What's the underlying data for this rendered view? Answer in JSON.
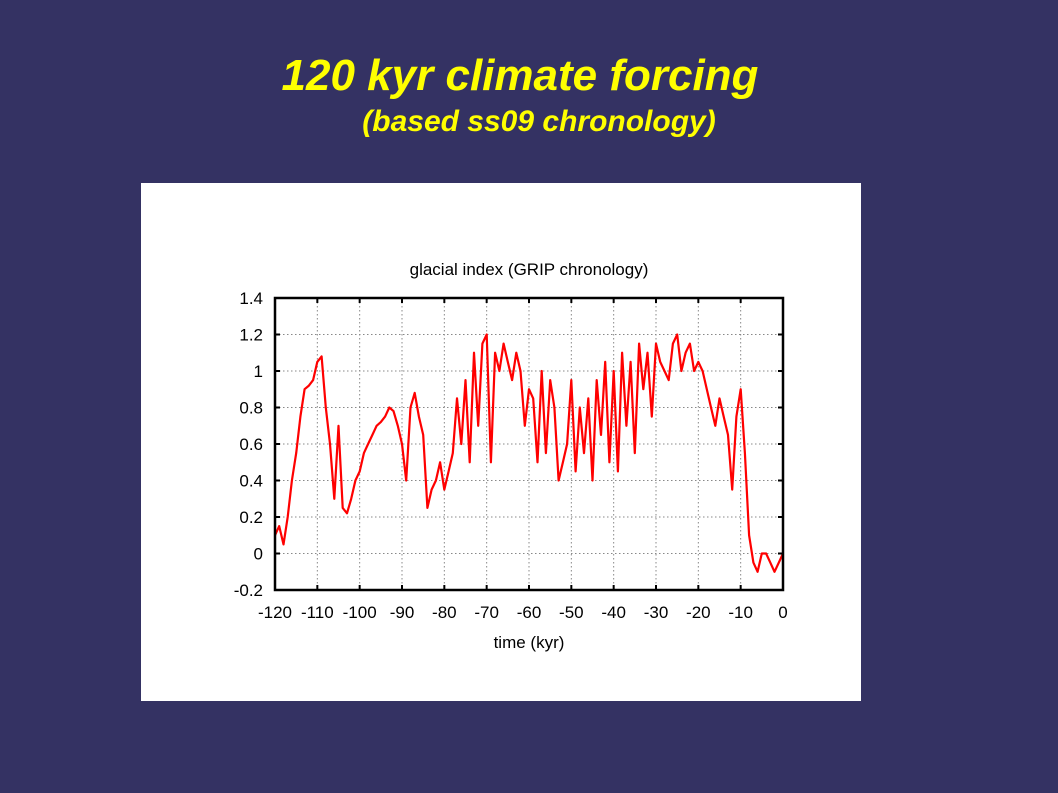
{
  "slide": {
    "title": "120 kyr climate forcing",
    "subtitle": "(based ss09 chronology)"
  },
  "colors": {
    "background": "#343263",
    "title": "#ffff00",
    "series": "#ff0000"
  },
  "chart_data": {
    "type": "line",
    "title": "glacial index (GRIP chronology)",
    "xlabel": "time (kyr)",
    "ylabel": "",
    "xlim": [
      -120,
      0
    ],
    "ylim": [
      -0.2,
      1.4
    ],
    "grid": true,
    "x_ticks": [
      -120,
      -110,
      -100,
      -90,
      -80,
      -70,
      -60,
      -50,
      -40,
      -30,
      -20,
      -10,
      0
    ],
    "x_tick_labels": [
      "-120",
      "-110",
      "-100",
      "-90",
      "-80",
      "-70",
      "-60",
      "-50",
      "-40",
      "-30",
      "-20",
      "-10",
      "0"
    ],
    "y_ticks": [
      -0.2,
      0,
      0.2,
      0.4,
      0.6,
      0.8,
      1,
      1.2,
      1.4
    ],
    "y_tick_labels": [
      "-0.2",
      "0",
      "0.2",
      "0.4",
      "0.6",
      "0.8",
      "1",
      "1.2",
      "1.4"
    ],
    "series": [
      {
        "color": "#ff0000",
        "x": [
          -120,
          -119,
          -118,
          -117,
          -116,
          -115,
          -114,
          -113,
          -112,
          -111,
          -110,
          -109,
          -108,
          -107,
          -106,
          -105,
          -104,
          -103,
          -102,
          -101,
          -100,
          -99,
          -98,
          -97,
          -96,
          -95,
          -94,
          -93,
          -92,
          -91,
          -90,
          -89,
          -88,
          -87,
          -86,
          -85,
          -84,
          -83,
          -82,
          -81,
          -80,
          -79,
          -78,
          -77,
          -76,
          -75,
          -74,
          -73,
          -72,
          -71,
          -70,
          -69,
          -68,
          -67,
          -66,
          -65,
          -64,
          -63,
          -62,
          -61,
          -60,
          -59,
          -58,
          -57,
          -56,
          -55,
          -54,
          -53,
          -52,
          -51,
          -50,
          -49,
          -48,
          -47,
          -46,
          -45,
          -44,
          -43,
          -42,
          -41,
          -40,
          -39,
          -38,
          -37,
          -36,
          -35,
          -34,
          -33,
          -32,
          -31,
          -30,
          -29,
          -28,
          -27,
          -26,
          -25,
          -24,
          -23,
          -22,
          -21,
          -20,
          -19,
          -18,
          -17,
          -16,
          -15,
          -14,
          -13,
          -12,
          -11,
          -10,
          -9,
          -8,
          -7,
          -6,
          -5,
          -4,
          -3,
          -2,
          -1,
          0
        ],
        "y": [
          0.1,
          0.15,
          0.05,
          0.2,
          0.4,
          0.55,
          0.75,
          0.9,
          0.92,
          0.95,
          1.05,
          1.08,
          0.8,
          0.6,
          0.3,
          0.7,
          0.25,
          0.22,
          0.3,
          0.4,
          0.45,
          0.55,
          0.6,
          0.65,
          0.7,
          0.72,
          0.75,
          0.8,
          0.78,
          0.7,
          0.6,
          0.4,
          0.8,
          0.88,
          0.75,
          0.65,
          0.25,
          0.35,
          0.4,
          0.5,
          0.35,
          0.45,
          0.55,
          0.85,
          0.6,
          0.95,
          0.5,
          1.1,
          0.7,
          1.15,
          1.2,
          0.5,
          1.1,
          1.0,
          1.15,
          1.05,
          0.95,
          1.1,
          1.0,
          0.7,
          0.9,
          0.85,
          0.5,
          1.0,
          0.55,
          0.95,
          0.8,
          0.4,
          0.5,
          0.6,
          0.95,
          0.45,
          0.8,
          0.55,
          0.85,
          0.4,
          0.95,
          0.65,
          1.05,
          0.5,
          1.0,
          0.45,
          1.1,
          0.7,
          1.05,
          0.55,
          1.15,
          0.9,
          1.1,
          0.75,
          1.15,
          1.05,
          1.0,
          0.95,
          1.15,
          1.2,
          1.0,
          1.1,
          1.15,
          1.0,
          1.05,
          1.0,
          0.9,
          0.8,
          0.7,
          0.85,
          0.75,
          0.65,
          0.35,
          0.75,
          0.9,
          0.55,
          0.1,
          -0.05,
          -0.1,
          0.0,
          0.0,
          -0.05,
          -0.1,
          -0.05,
          0.0
        ]
      }
    ]
  }
}
